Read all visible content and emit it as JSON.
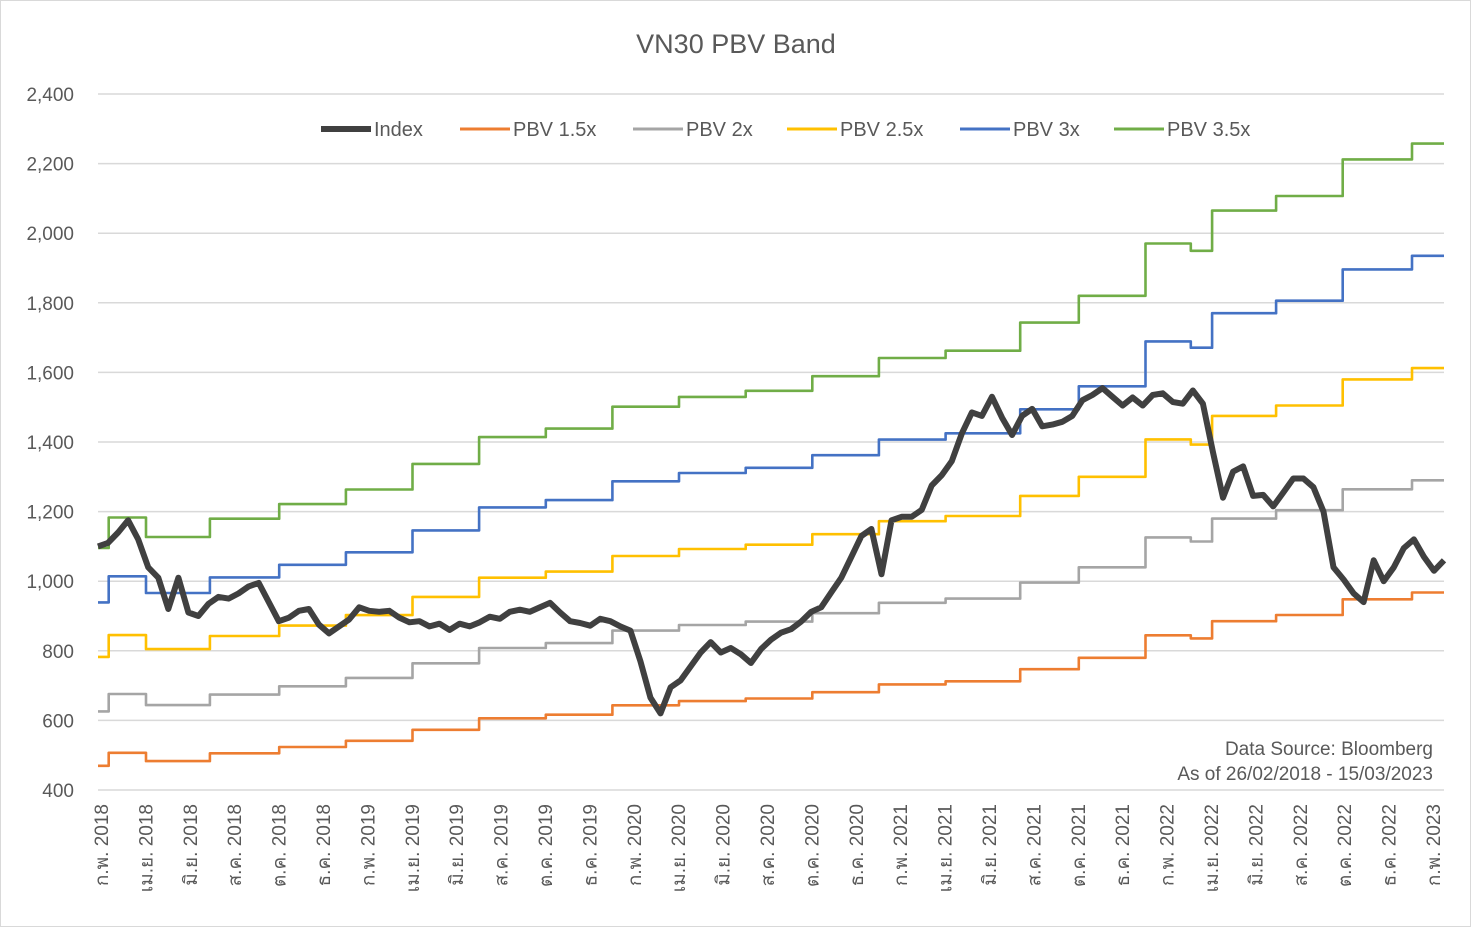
{
  "chart_data": {
    "type": "line",
    "title": "VN30 PBV Band",
    "xlabel": "",
    "ylabel": "",
    "ylim": [
      400,
      2400
    ],
    "yticks": [
      400,
      600,
      800,
      1000,
      1200,
      1400,
      1600,
      1800,
      2000,
      2200,
      2400
    ],
    "ytick_labels": [
      "400",
      "600",
      "800",
      "1,000",
      "1,200",
      "1,400",
      "1,600",
      "1,800",
      "2,000",
      "2,200",
      "2,400"
    ],
    "xlim_decimal_year": [
      2018.15,
      2023.2
    ],
    "xtick_labels": [
      "ก.พ. 2018",
      "เม.ย. 2018",
      "มิ.ย. 2018",
      "ส.ค. 2018",
      "ต.ค. 2018",
      "ธ.ค. 2018",
      "ก.พ. 2019",
      "เม.ย. 2019",
      "มิ.ย. 2019",
      "ส.ค. 2019",
      "ต.ค. 2019",
      "ธ.ค. 2019",
      "ก.พ. 2020",
      "เม.ย. 2020",
      "มิ.ย. 2020",
      "ส.ค. 2020",
      "ต.ค. 2020",
      "ธ.ค. 2020",
      "ก.พ. 2021",
      "เม.ย. 2021",
      "มิ.ย. 2021",
      "ส.ค. 2021",
      "ต.ค. 2021",
      "ธ.ค. 2021",
      "ก.พ. 2022",
      "เม.ย. 2022",
      "มิ.ย. 2022",
      "ส.ค. 2022",
      "ต.ค. 2022",
      "ธ.ค. 2022",
      "ก.พ. 2023"
    ],
    "grid": true,
    "legend_position": "top",
    "annotations": [
      "Data Source: Bloomberg",
      "As of 26/02/2018 - 15/03/2023"
    ],
    "book_value_steps": [
      [
        2018.15,
        313
      ],
      [
        2018.19,
        338
      ],
      [
        2018.33,
        322
      ],
      [
        2018.57,
        337
      ],
      [
        2018.83,
        349
      ],
      [
        2019.08,
        361
      ],
      [
        2019.33,
        382
      ],
      [
        2019.58,
        404
      ],
      [
        2019.83,
        411
      ],
      [
        2020.08,
        429
      ],
      [
        2020.33,
        437
      ],
      [
        2020.58,
        442
      ],
      [
        2020.83,
        454
      ],
      [
        2021.08,
        469
      ],
      [
        2021.33,
        475
      ],
      [
        2021.61,
        498
      ],
      [
        2021.83,
        520
      ],
      [
        2022.08,
        563
      ],
      [
        2022.25,
        557
      ],
      [
        2022.33,
        590
      ],
      [
        2022.57,
        602
      ],
      [
        2022.82,
        632
      ],
      [
        2023.08,
        645
      ]
    ],
    "series": [
      {
        "name": "Index",
        "color": "#404040",
        "kind": "index",
        "start": "26/02/2018",
        "end": "15/03/2023",
        "values": [
          1100,
          1110,
          1140,
          1175,
          1120,
          1040,
          1010,
          920,
          1010,
          910,
          900,
          935,
          955,
          950,
          965,
          985,
          995,
          940,
          885,
          895,
          915,
          920,
          875,
          850,
          870,
          890,
          925,
          915,
          912,
          915,
          895,
          882,
          885,
          870,
          878,
          860,
          878,
          870,
          882,
          898,
          892,
          912,
          918,
          912,
          925,
          938,
          910,
          885,
          880,
          872,
          892,
          885,
          870,
          858,
          770,
          665,
          620,
          695,
          715,
          755,
          795,
          825,
          795,
          808,
          790,
          765,
          805,
          832,
          852,
          862,
          884,
          912,
          925,
          968,
          1010,
          1070,
          1130,
          1150,
          1020,
          1175,
          1185,
          1185,
          1205,
          1275,
          1305,
          1345,
          1425,
          1485,
          1475,
          1530,
          1470,
          1420,
          1475,
          1495,
          1445,
          1450,
          1458,
          1475,
          1520,
          1535,
          1555,
          1530,
          1505,
          1528,
          1505,
          1535,
          1540,
          1515,
          1510,
          1548,
          1510,
          1370,
          1240,
          1315,
          1330,
          1245,
          1248,
          1215,
          1255,
          1295,
          1295,
          1270,
          1200,
          1040,
          1005,
          965,
          940,
          1060,
          1000,
          1040,
          1095,
          1120,
          1070,
          1030,
          1060
        ]
      },
      {
        "name": "PBV 1.5x",
        "color": "#ED7D31",
        "multiple": 1.5
      },
      {
        "name": "PBV 2x",
        "color": "#A5A5A5",
        "multiple": 2
      },
      {
        "name": "PBV 2.5x",
        "color": "#FFC000",
        "multiple": 2.5
      },
      {
        "name": "PBV 3x",
        "color": "#4472C4",
        "multiple": 3
      },
      {
        "name": "PBV 3.5x",
        "color": "#70AD47",
        "multiple": 3.5
      }
    ]
  }
}
